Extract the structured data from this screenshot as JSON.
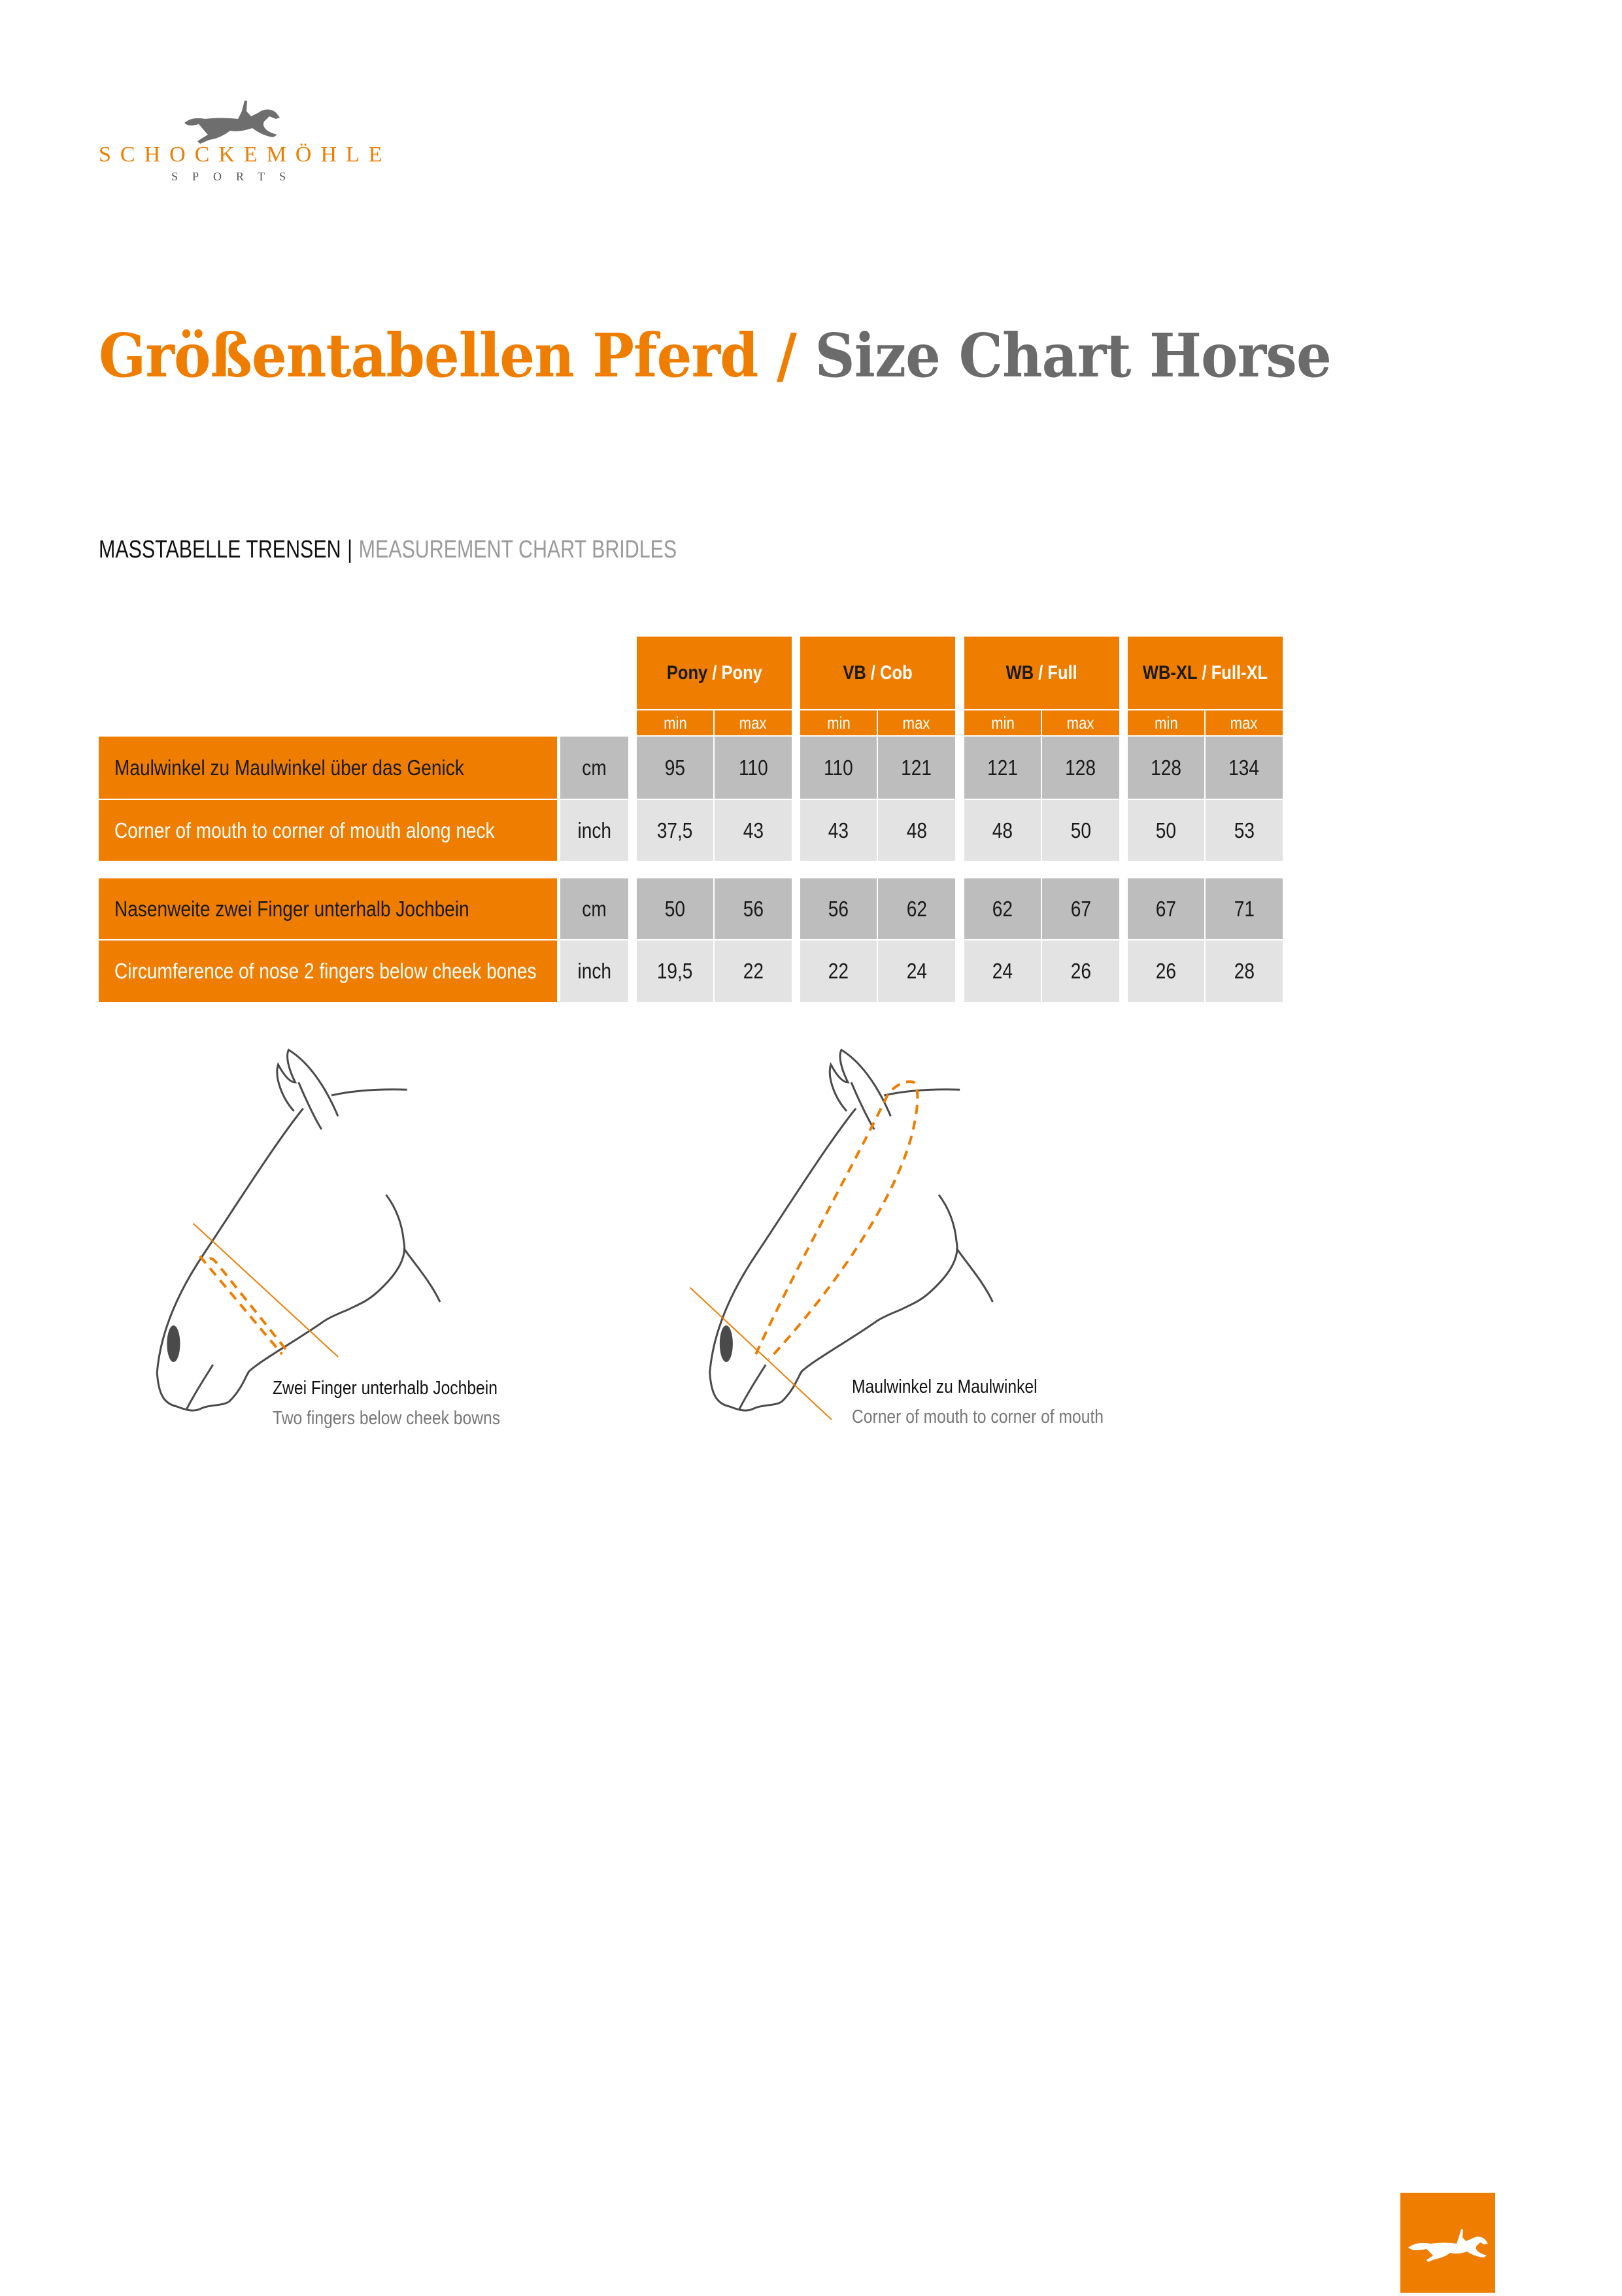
{
  "brand": {
    "name": "SCHOCKEMÖHLE",
    "sub": "SPORTS",
    "color": "#ee7d00"
  },
  "title": {
    "de": "Größentabellen Pferd",
    "sep": "/",
    "en": "Size Chart Horse"
  },
  "section": {
    "de": "MASSTABELLE TRENSEN",
    "sep": "|",
    "en": "MEASUREMENT CHART BRIDLES"
  },
  "table": {
    "sizes": [
      {
        "de": "Pony",
        "en": "/ Pony"
      },
      {
        "de": "VB",
        "en": "/ Cob"
      },
      {
        "de": "WB",
        "en": "/ Full"
      },
      {
        "de": "WB-XL",
        "en": "/ Full-XL"
      }
    ],
    "min_label": "min",
    "max_label": "max",
    "rows": [
      {
        "label": "Maulwinkel zu Maulwinkel über das Genick",
        "unit": "cm",
        "values": [
          "95",
          "110",
          "110",
          "121",
          "121",
          "128",
          "128",
          "134"
        ]
      },
      {
        "label": "Corner of mouth to corner of mouth along neck",
        "unit": "inch",
        "values": [
          "37,5",
          "43",
          "43",
          "48",
          "48",
          "50",
          "50",
          "53"
        ]
      },
      {
        "label": "Nasenweite zwei Finger unterhalb Jochbein",
        "unit": "cm",
        "values": [
          "50",
          "56",
          "56",
          "62",
          "62",
          "67",
          "67",
          "71"
        ]
      },
      {
        "label": "Circumference of nose 2 fingers below cheek bones",
        "unit": "inch",
        "values": [
          "19,5",
          "22",
          "22",
          "24",
          "24",
          "26",
          "26",
          "28"
        ]
      }
    ]
  },
  "illustrations": [
    {
      "de": "Zwei Finger unterhalb Jochbein",
      "en": "Two fingers below cheek bowns"
    },
    {
      "de": "Maulwinkel zu Maulwinkel",
      "en": "Corner of mouth to corner of mouth"
    }
  ],
  "colors": {
    "orange": "#ee7d00",
    "dark_row": "#bcbdbc",
    "light_row": "#e3e3e3",
    "title_gray": "#6b6b6b"
  }
}
